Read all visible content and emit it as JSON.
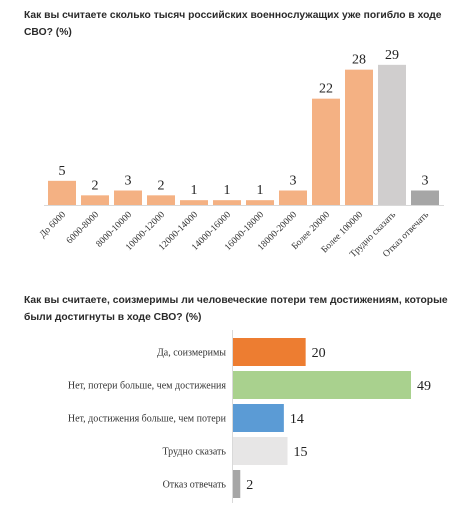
{
  "chart_data": [
    {
      "type": "bar",
      "title": "Как вы считаете сколько тысяч российских военнослужащих уже погибло в ходе СВО? (%)",
      "categories": [
        "До 6000",
        "6000-8000",
        "8000-10000",
        "10000-12000",
        "12000-14000",
        "14000-16000",
        "16000-18000",
        "18000-20000",
        "Более 20000",
        "Более 100000",
        "Трудно сказать",
        "Отказ отвечать"
      ],
      "values": [
        5,
        2,
        3,
        2,
        1,
        1,
        1,
        3,
        22,
        28,
        29,
        3
      ],
      "colors": [
        "#f4b183",
        "#f4b183",
        "#f4b183",
        "#f4b183",
        "#f4b183",
        "#f4b183",
        "#f4b183",
        "#f4b183",
        "#f4b183",
        "#f4b183",
        "#d0cece",
        "#a6a6a6"
      ],
      "ylim": [
        0,
        30
      ],
      "grid": false,
      "legend": "none"
    },
    {
      "type": "bar",
      "orientation": "horizontal",
      "title": "Как вы считаете, соизмеримы ли человеческие потери тем достижениям, которые были достигнуты в ходе СВО? (%)",
      "categories": [
        "Да, соизмеримы",
        "Нет, потери больше, чем достижения",
        "Нет, достижения больше, чем потери",
        "Трудно сказать",
        "Отказ отвечать"
      ],
      "values": [
        20,
        49,
        14,
        15,
        2
      ],
      "colors": [
        "#ed7d31",
        "#a9d18e",
        "#5b9bd5",
        "#e7e6e6",
        "#a6a6a6"
      ],
      "xlim": [
        0,
        50
      ],
      "grid": false,
      "legend": "none"
    }
  ]
}
